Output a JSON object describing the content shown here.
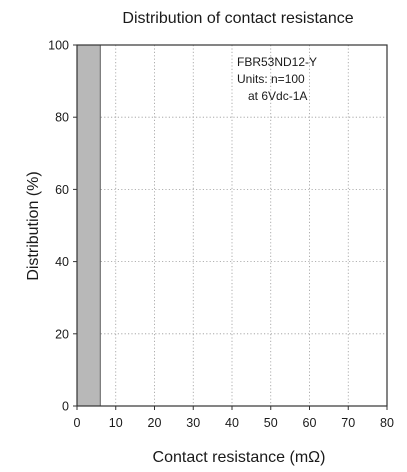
{
  "chart_data": {
    "type": "bar",
    "title": "Distribution of contact resistance",
    "xlabel": "Contact resistance (mΩ)",
    "ylabel": "Distribution (%)",
    "xlim": [
      0,
      80
    ],
    "ylim": [
      0,
      100
    ],
    "xticks": [
      "0",
      "10",
      "20",
      "30",
      "40",
      "50",
      "60",
      "70",
      "80"
    ],
    "yticks": [
      "0",
      "20",
      "40",
      "60",
      "80",
      "100"
    ],
    "bins": [
      {
        "x_start": 0,
        "x_end": 6,
        "value": 100
      }
    ],
    "annotations": [
      "FBR53ND12-Y",
      "Units: n=100",
      "at 6Vdc-1A"
    ],
    "grid": true,
    "bar_color": "#b8b8b8"
  }
}
